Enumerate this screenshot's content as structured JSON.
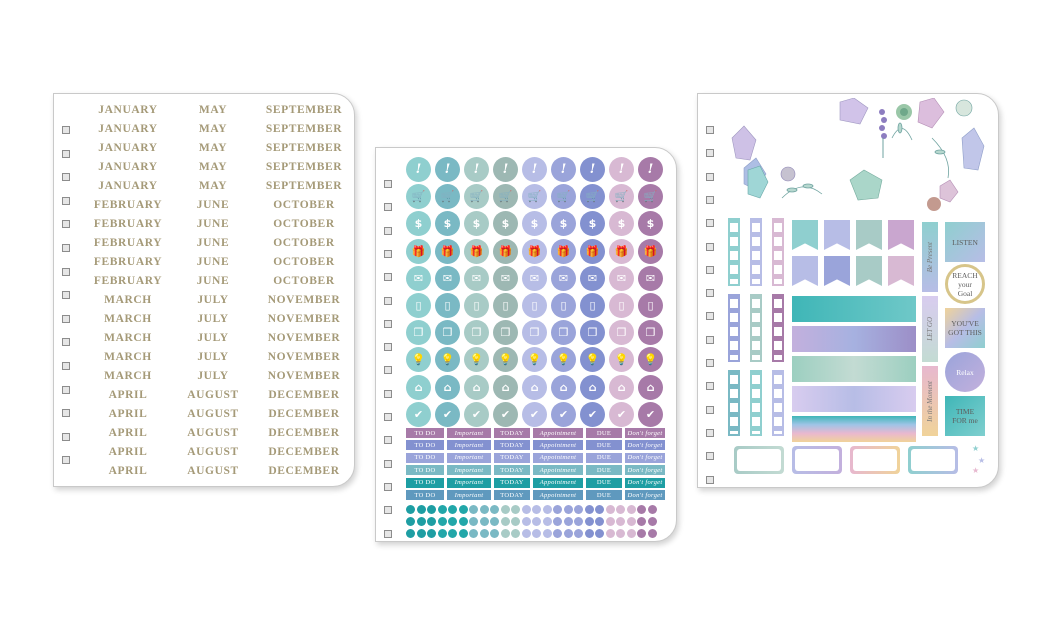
{
  "months_sheet": {
    "rows": [
      [
        "JANUARY",
        "MAY",
        "SEPTEMBER"
      ],
      [
        "JANUARY",
        "MAY",
        "SEPTEMBER"
      ],
      [
        "JANUARY",
        "MAY",
        "SEPTEMBER"
      ],
      [
        "JANUARY",
        "MAY",
        "SEPTEMBER"
      ],
      [
        "JANUARY",
        "MAY",
        "SEPTEMBER"
      ],
      [
        "FEBRUARY",
        "JUNE",
        "OCTOBER"
      ],
      [
        "FEBRUARY",
        "JUNE",
        "OCTOBER"
      ],
      [
        "FEBRUARY",
        "JUNE",
        "OCTOBER"
      ],
      [
        "FEBRUARY",
        "JUNE",
        "OCTOBER"
      ],
      [
        "FEBRUARY",
        "JUNE",
        "OCTOBER"
      ],
      [
        "MARCH",
        "JULY",
        "NOVEMBER"
      ],
      [
        "MARCH",
        "JULY",
        "NOVEMBER"
      ],
      [
        "MARCH",
        "JULY",
        "NOVEMBER"
      ],
      [
        "MARCH",
        "JULY",
        "NOVEMBER"
      ],
      [
        "MARCH",
        "JULY",
        "NOVEMBER"
      ],
      [
        "APRIL",
        "AUGUST",
        "DECEMBER"
      ],
      [
        "APRIL",
        "AUGUST",
        "DECEMBER"
      ],
      [
        "APRIL",
        "AUGUST",
        "DECEMBER"
      ],
      [
        "APRIL",
        "AUGUST",
        "DECEMBER"
      ],
      [
        "APRIL",
        "AUGUST",
        "DECEMBER"
      ]
    ],
    "text_color": "#a59a78"
  },
  "icons_sheet": {
    "column_colors": [
      "#8fcfcf",
      "#7ab9c4",
      "#a8cbc6",
      "#9db8b3",
      "#b7bde6",
      "#9aa4da",
      "#8391d0",
      "#d8b9d3",
      "#a77aa8"
    ],
    "icon_rows": [
      {
        "icon": "exclamation-icon",
        "glyph": "!"
      },
      {
        "icon": "cart-icon",
        "glyph": "🛒"
      },
      {
        "icon": "dollar-icon",
        "glyph": "$"
      },
      {
        "icon": "gift-icon",
        "glyph": "🎁"
      },
      {
        "icon": "envelope-icon",
        "glyph": "✉"
      },
      {
        "icon": "phone-icon",
        "glyph": "▯"
      },
      {
        "icon": "documents-icon",
        "glyph": "❐"
      },
      {
        "icon": "lightbulb-icon",
        "glyph": "💡"
      },
      {
        "icon": "house-icon",
        "glyph": "⌂"
      },
      {
        "icon": "checkmark-icon",
        "glyph": "✔"
      }
    ],
    "label_columns": [
      "TO DO",
      "Important",
      "TODAY",
      "Appointment",
      "DUE",
      "Don't forget"
    ],
    "label_rows": [
      [
        "#a77aa8",
        "#a77aa8",
        "#a77aa8",
        "#a77aa8",
        "#a77aa8",
        "#a77aa8"
      ],
      [
        "#8391d0",
        "#8391d0",
        "#8391d0",
        "#8391d0",
        "#8391d0",
        "#8391d0"
      ],
      [
        "#9aa4da",
        "#9aa4da",
        "#9aa4da",
        "#9aa4da",
        "#9aa4da",
        "#9aa4da"
      ],
      [
        "#7ab9c4",
        "#7ab9c4",
        "#7ab9c4",
        "#7ab9c4",
        "#7ab9c4",
        "#7ab9c4"
      ],
      [
        "#1e9ea3",
        "#1e9ea3",
        "#1e9ea3",
        "#1e9ea3",
        "#1e9ea3",
        "#1e9ea3"
      ],
      [
        "#5f99be",
        "#5f99be",
        "#5f99be",
        "#5f99be",
        "#5f99be",
        "#5f99be"
      ]
    ],
    "label_italic": [
      false,
      true,
      false,
      true,
      false,
      true
    ],
    "dot_colors": [
      "#1e9ea3",
      "#22a7a9",
      "#7ab9c4",
      "#a8cbc6",
      "#b7bde6",
      "#9aa4da",
      "#8391d0",
      "#d8b9d3",
      "#a77aa8"
    ]
  },
  "deco_sheet": {
    "tag_be_present": "Be Present",
    "tag_let_go": "LET GO",
    "tag_moment": "In the Moment",
    "sq_listen": "LISTEN",
    "sq_reach": "REACH your Goal",
    "sq_got_this": "YOU'VE GOT THIS",
    "sq_relax": "Relax",
    "sq_time": "TIME FOR me",
    "colors": {
      "teal": "#7fcfcf",
      "lavender": "#b9a6d8",
      "sage": "#a9cbbf",
      "blue": "#9fb3e0",
      "pink": "#e7b8cf",
      "gold": "#d7c58a"
    }
  }
}
